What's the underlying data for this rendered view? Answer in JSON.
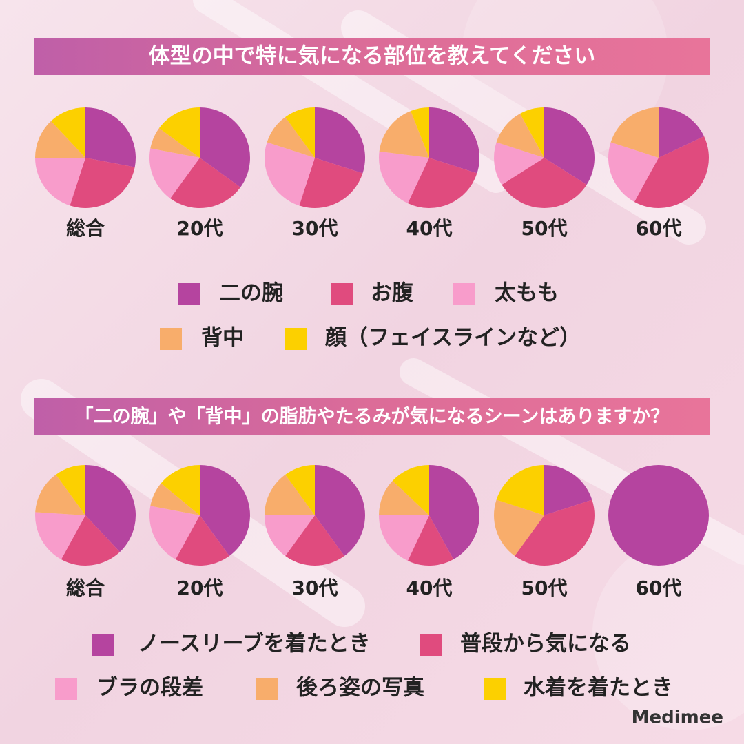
{
  "brand": "Medimee",
  "chart_data": [
    {
      "type": "pie",
      "title": "体型の中で特に気になる部位を教えてください",
      "categories": [
        "二の腕",
        "お腹",
        "太もも",
        "背中",
        "顔（フェイスラインなど）"
      ],
      "colors": [
        "#b5449f",
        "#e04b7e",
        "#f89ccb",
        "#f8ad6b",
        "#fcd000"
      ],
      "series": [
        {
          "name": "総合",
          "values": [
            28,
            27,
            20,
            13,
            12
          ]
        },
        {
          "name": "20代",
          "values": [
            35,
            25,
            18,
            7,
            15
          ]
        },
        {
          "name": "30代",
          "values": [
            30,
            25,
            25,
            10,
            10
          ]
        },
        {
          "name": "40代",
          "values": [
            30,
            27,
            20,
            17,
            6
          ]
        },
        {
          "name": "50代",
          "values": [
            34,
            32,
            14,
            12,
            8
          ]
        },
        {
          "name": "60代",
          "values": [
            18,
            40,
            22,
            20,
            0
          ]
        }
      ]
    },
    {
      "type": "pie",
      "title": "「二の腕」や「背中」の脂肪やたるみが気になるシーンはありますか？",
      "categories": [
        "ノースリーブを着たとき",
        "普段から気になる",
        "ブラの段差",
        "後ろ姿の写真",
        "水着を着たとき"
      ],
      "colors": [
        "#b5449f",
        "#e04b7e",
        "#f89ccb",
        "#f8ad6b",
        "#fcd000"
      ],
      "series": [
        {
          "name": "総合",
          "values": [
            38,
            20,
            18,
            14,
            10
          ]
        },
        {
          "name": "20代",
          "values": [
            40,
            18,
            20,
            8,
            14
          ]
        },
        {
          "name": "30代",
          "values": [
            40,
            20,
            15,
            15,
            10
          ]
        },
        {
          "name": "40代",
          "values": [
            42,
            15,
            18,
            12,
            13
          ]
        },
        {
          "name": "50代",
          "values": [
            20,
            40,
            0,
            20,
            20
          ]
        },
        {
          "name": "60代",
          "values": [
            100,
            0,
            0,
            0,
            0
          ]
        }
      ]
    }
  ]
}
